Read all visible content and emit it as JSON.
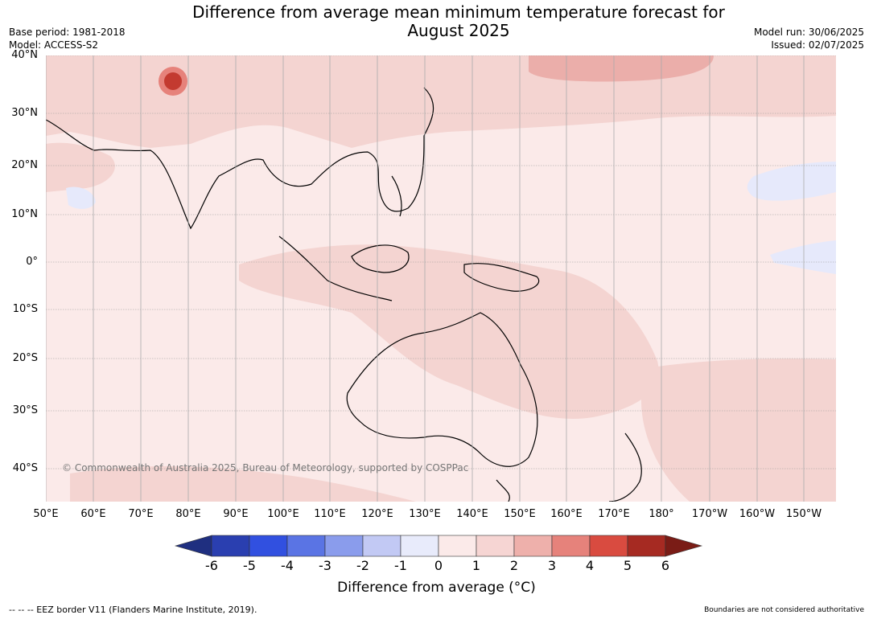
{
  "title_line1": "Difference from average mean minimum temperature forecast for",
  "title_line2": "August 2025",
  "base_period": "Base period: 1981-2018",
  "model": "Model: ACCESS-S2",
  "model_run": "Model run: 30/06/2025",
  "issued": "Issued: 02/07/2025",
  "lat_labels": [
    "40°N",
    "30°N",
    "20°N",
    "10°N",
    "0°",
    "10°S",
    "20°S",
    "30°S",
    "40°S"
  ],
  "lon_labels": [
    "50°E",
    "60°E",
    "70°E",
    "80°E",
    "90°E",
    "100°E",
    "110°E",
    "120°E",
    "130°E",
    "140°E",
    "150°E",
    "160°E",
    "170°E",
    "180°",
    "170°W",
    "160°W",
    "150°W"
  ],
  "copyright": "© Commonwealth of Australia 2025, Bureau of Meteorology, supported by COSPPac",
  "colorbar": {
    "ticks": [
      "-6",
      "-5",
      "-4",
      "-3",
      "-2",
      "-1",
      "0",
      "1",
      "2",
      "3",
      "4",
      "5",
      "6"
    ],
    "colors": [
      "#1f2f80",
      "#2a3fb0",
      "#3150e0",
      "#5a74e4",
      "#8a9cec",
      "#c2c9f4",
      "#e8ebfb",
      "#fbeae9",
      "#f6d5d3",
      "#eeb0ab",
      "#e6827b",
      "#d94b40",
      "#a62a22",
      "#7a1c16"
    ],
    "label": "Difference from average (°C)"
  },
  "footer_left": "-- -- -- EEZ border V11 (Flanders Marine Institute, 2019).",
  "footer_right": "Boundaries are not considered authoritative",
  "map_colors": {
    "ocean_base": "#fbeae9",
    "warm_1": "#f4d4d1",
    "warm_2": "#ebaeaa",
    "hot": "#c33a30",
    "cool": "#e6e9fb",
    "gridline": "#999999",
    "coast": "#000000",
    "border": "#888888"
  }
}
